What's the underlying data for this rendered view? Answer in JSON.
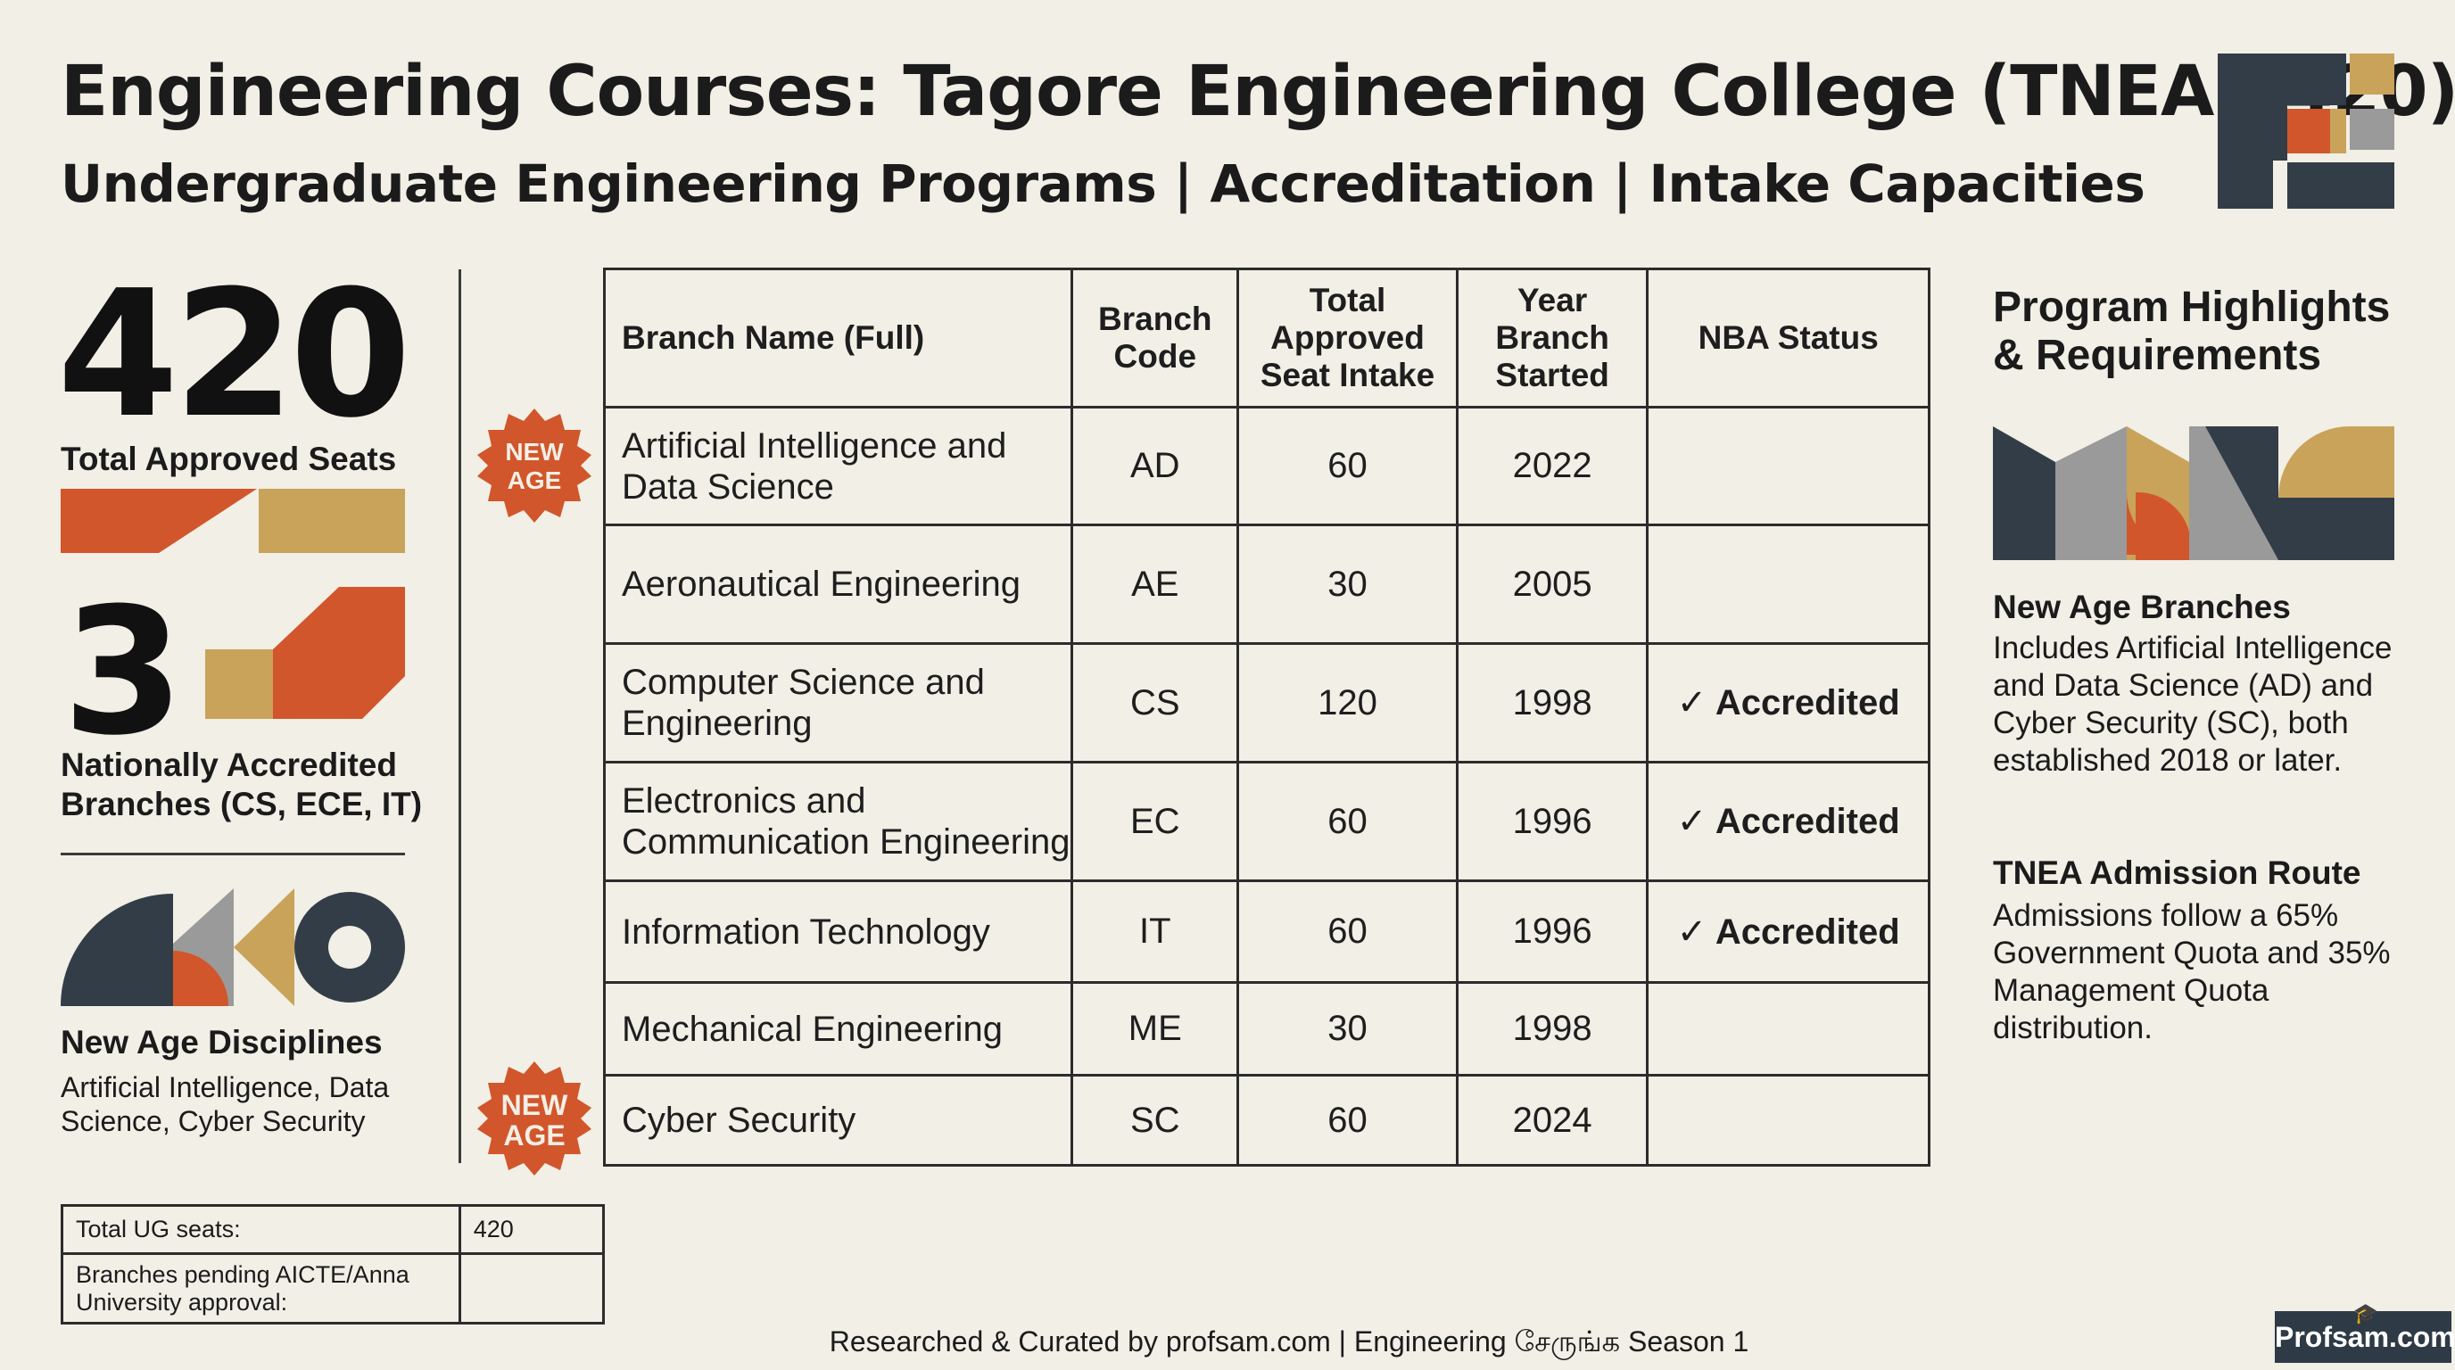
{
  "header": {
    "title": "Engineering Courses: Tagore Engineering College (TNEA 1420)",
    "subtitle": "Undergraduate Engineering Programs | Accreditation | Intake Capacities"
  },
  "left": {
    "stat1": {
      "value": "420",
      "label": "Total Approved Seats"
    },
    "stat2": {
      "value": "3",
      "label": "Nationally Accredited Branches (CS, ECE, IT)"
    },
    "stat3": {
      "title": "New Age Disciplines",
      "text": "Artificial Intelligence, Data Science, Cyber Security"
    }
  },
  "badges": {
    "new_age_line1": "NEW",
    "new_age_line2": "AGE"
  },
  "table": {
    "headers": [
      "Branch Name (Full)",
      "Branch Code",
      "Total Approved Seat Intake",
      "Year Branch Started",
      "NBA Status"
    ],
    "rows": [
      {
        "name": "Artificial Intelligence and Data Science",
        "code": "AD",
        "seats": "60",
        "year": "2022",
        "nba": ""
      },
      {
        "name": "Aeronautical Engineering",
        "code": "AE",
        "seats": "30",
        "year": "2005",
        "nba": ""
      },
      {
        "name": "Computer Science and Engineering",
        "code": "CS",
        "seats": "120",
        "year": "1998",
        "nba": "✓ Accredited"
      },
      {
        "name": "Electronics and Communication Engineering",
        "code": "EC",
        "seats": "60",
        "year": "1996",
        "nba": "✓ Accredited"
      },
      {
        "name": "Information Technology",
        "code": "IT",
        "seats": "60",
        "year": "1996",
        "nba": "✓ Accredited"
      },
      {
        "name": "Mechanical Engineering",
        "code": "ME",
        "seats": "30",
        "year": "1998",
        "nba": ""
      },
      {
        "name": "Cyber Security",
        "code": "SC",
        "seats": "60",
        "year": "2024",
        "nba": ""
      }
    ]
  },
  "right": {
    "title": "Program Highlights & Requirements",
    "h1": "New Age Branches",
    "t1": "Includes Artificial Intelligence and Data Science (AD) and Cyber Security (SC), both established 2018 or later.",
    "h2": "TNEA Admission Route",
    "t2": "Admissions follow a 65% Government Quota and 35% Management Quota distribution."
  },
  "summary": {
    "row1_label": "Total UG seats:",
    "row1_value": "420",
    "row2_label": "Branches pending AICTE/Anna University approval:",
    "row2_value": ""
  },
  "footer": "Researched & Curated by profsam.com | Engineering சேருங்க Season 1",
  "brand": {
    "name": "Profsam.com",
    "icon": "🎓"
  },
  "colors": {
    "background": "#f1efe6",
    "orange": "#d2562b",
    "gold": "#c9a35a",
    "slate": "#333d47",
    "grey": "#9a9a9a"
  }
}
